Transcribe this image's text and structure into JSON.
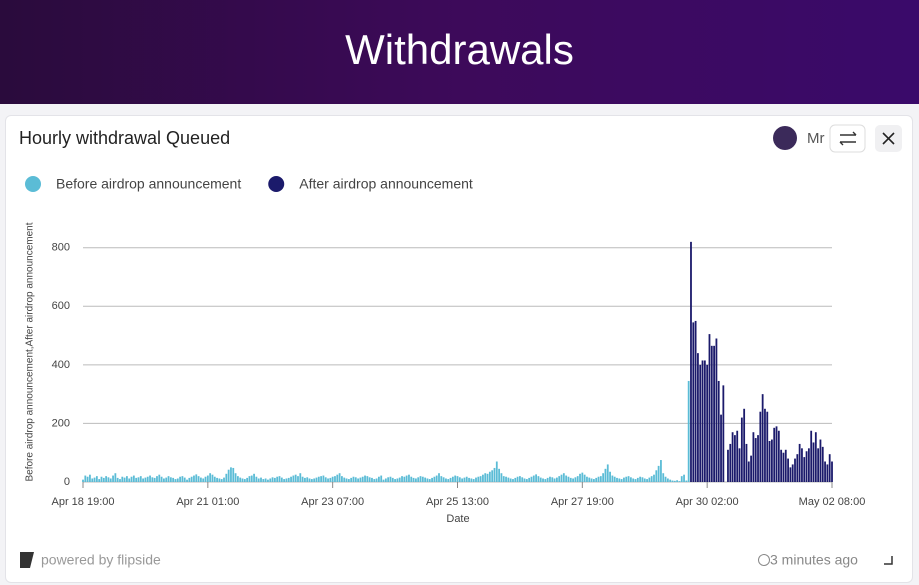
{
  "header": {
    "title": "Withdrawals"
  },
  "card": {
    "user": "Mr",
    "brand": "powered by flipside",
    "updated": "3 minutes ago"
  },
  "chart_data": {
    "type": "bar",
    "title": "Hourly withdrawal Queued",
    "x_label": "Date",
    "y_label": "Before airdrop announcement,After airdrop announcement",
    "legend": "top-left",
    "grid": true,
    "ylim": [
      0,
      840
    ],
    "yticks": [
      0,
      200,
      400,
      600,
      800
    ],
    "categories": [
      "Apr 18 19:00",
      null,
      null,
      null,
      null,
      null,
      null,
      null,
      null,
      null,
      null,
      null,
      null,
      null,
      null,
      null,
      null,
      null,
      null,
      null,
      null,
      null,
      null,
      null,
      null,
      null,
      null,
      null,
      null,
      null,
      null,
      null,
      null,
      null,
      null,
      null,
      null,
      null,
      null,
      null,
      null,
      null,
      null,
      null,
      null,
      null,
      null,
      null,
      null,
      null,
      null,
      null,
      null,
      null,
      "Apr 21 01:00",
      null,
      null,
      null,
      null,
      null,
      null,
      null,
      null,
      null,
      null,
      null,
      null,
      null,
      null,
      null,
      null,
      null,
      null,
      null,
      null,
      null,
      null,
      null,
      null,
      null,
      null,
      null,
      null,
      null,
      null,
      null,
      null,
      null,
      null,
      null,
      null,
      null,
      null,
      null,
      null,
      null,
      null,
      null,
      null,
      null,
      null,
      null,
      null,
      null,
      null,
      null,
      null,
      null,
      "Apr 23 07:00",
      null,
      null,
      null,
      null,
      null,
      null,
      null,
      null,
      null,
      null,
      null,
      null,
      null,
      null,
      null,
      null,
      null,
      null,
      null,
      null,
      null,
      null,
      null,
      null,
      null,
      null,
      null,
      null,
      null,
      null,
      null,
      null,
      null,
      null,
      null,
      null,
      null,
      null,
      null,
      null,
      null,
      null,
      null,
      null,
      null,
      null,
      null,
      null,
      null,
      null,
      null,
      null,
      null,
      "Apr 25 13:00",
      null,
      null,
      null,
      null,
      null,
      null,
      null,
      null,
      null,
      null,
      null,
      null,
      null,
      null,
      null,
      null,
      null,
      null,
      null,
      null,
      null,
      null,
      null,
      null,
      null,
      null,
      null,
      null,
      null,
      null,
      null,
      null,
      null,
      null,
      null,
      null,
      null,
      null,
      null,
      null,
      null,
      null,
      null,
      null,
      null,
      null,
      null,
      null,
      null,
      null,
      null,
      null,
      null,
      "Apr 27 19:00",
      null,
      null,
      null,
      null,
      null,
      null,
      null,
      null,
      null,
      null,
      null,
      null,
      null,
      null,
      null,
      null,
      null,
      null,
      null,
      null,
      null,
      null,
      null,
      null,
      null,
      null,
      null,
      null,
      null,
      null,
      null,
      null,
      null,
      null,
      null,
      null,
      null,
      null,
      null,
      null,
      null,
      null,
      null,
      null,
      null,
      null,
      null,
      null,
      null,
      null,
      null,
      null,
      null,
      "Apr 30 02:00",
      null,
      null,
      null,
      null,
      null,
      null,
      null,
      null,
      null,
      null,
      null,
      null,
      null,
      null,
      null,
      null,
      null,
      null,
      null,
      null,
      null,
      null,
      null,
      null,
      null,
      null,
      null,
      null,
      null,
      null,
      null,
      null,
      null,
      null,
      null,
      null,
      null,
      null,
      null,
      null,
      null,
      null,
      null,
      null,
      null,
      null,
      null,
      null,
      null,
      null,
      null,
      null,
      null,
      "May 02 08:00"
    ],
    "series": [
      {
        "name": "Before airdrop announcement",
        "color": "#5bbcd6",
        "values": [
          8,
          22,
          18,
          25,
          12,
          15,
          20,
          10,
          18,
          14,
          20,
          16,
          12,
          22,
          30,
          14,
          10,
          18,
          15,
          20,
          12,
          18,
          22,
          14,
          16,
          20,
          12,
          15,
          18,
          22,
          16,
          14,
          20,
          25,
          18,
          12,
          15,
          20,
          16,
          14,
          10,
          12,
          18,
          20,
          15,
          8,
          14,
          18,
          22,
          26,
          20,
          15,
          12,
          18,
          22,
          30,
          25,
          18,
          14,
          12,
          10,
          15,
          28,
          42,
          50,
          48,
          30,
          20,
          15,
          12,
          10,
          14,
          20,
          22,
          28,
          18,
          12,
          15,
          10,
          12,
          8,
          12,
          16,
          14,
          18,
          20,
          15,
          10,
          12,
          14,
          18,
          22,
          25,
          20,
          30,
          18,
          14,
          16,
          12,
          10,
          12,
          15,
          18,
          20,
          22,
          16,
          12,
          14,
          18,
          20,
          25,
          30,
          20,
          15,
          12,
          10,
          14,
          18,
          16,
          12,
          15,
          18,
          22,
          20,
          16,
          14,
          10,
          12,
          18,
          22,
          8,
          12,
          16,
          18,
          14,
          10,
          12,
          15,
          20,
          18,
          22,
          25,
          18,
          14,
          12,
          16,
          20,
          18,
          15,
          12,
          10,
          14,
          18,
          22,
          30,
          20,
          16,
          12,
          10,
          14,
          18,
          22,
          20,
          16,
          12,
          15,
          18,
          14,
          12,
          10,
          15,
          18,
          20,
          25,
          30,
          28,
          35,
          40,
          48,
          70,
          45,
          30,
          20,
          18,
          15,
          12,
          10,
          14,
          18,
          20,
          16,
          12,
          10,
          14,
          18,
          22,
          26,
          20,
          15,
          12,
          10,
          14,
          18,
          16,
          12,
          15,
          20,
          25,
          30,
          22,
          18,
          14,
          12,
          16,
          20,
          28,
          32,
          25,
          18,
          15,
          12,
          10,
          14,
          18,
          20,
          30,
          45,
          60,
          35,
          22,
          18,
          14,
          12,
          10,
          15,
          18,
          20,
          16,
          12,
          10,
          14,
          18,
          16,
          12,
          10,
          15,
          20,
          25,
          40,
          55,
          75,
          30,
          18,
          12,
          8,
          5,
          4,
          6,
          3,
          20,
          25,
          5,
          345,
          null,
          null,
          null,
          null,
          null,
          null,
          null,
          null,
          null,
          null,
          null,
          null,
          null,
          null,
          null,
          null,
          null,
          null,
          null,
          null,
          null,
          null,
          null,
          null,
          null,
          null,
          null,
          null,
          null,
          null,
          null,
          null,
          null,
          null,
          null,
          null,
          null,
          null,
          null,
          null,
          null,
          null,
          null,
          null,
          null,
          null,
          null,
          null,
          null,
          null,
          null,
          null,
          null,
          null,
          null,
          null,
          null,
          null,
          null,
          null,
          null,
          null
        ]
      },
      {
        "name": "After airdrop announcement",
        "color": "#1b1a6b",
        "values": [
          null,
          null,
          null,
          null,
          null,
          null,
          null,
          null,
          null,
          null,
          null,
          null,
          null,
          null,
          null,
          null,
          null,
          null,
          null,
          null,
          null,
          null,
          null,
          null,
          null,
          null,
          null,
          null,
          null,
          null,
          null,
          null,
          null,
          null,
          null,
          null,
          null,
          null,
          null,
          null,
          null,
          null,
          null,
          null,
          null,
          null,
          null,
          null,
          null,
          null,
          null,
          null,
          null,
          null,
          null,
          null,
          null,
          null,
          null,
          null,
          null,
          null,
          null,
          null,
          null,
          null,
          null,
          null,
          null,
          null,
          null,
          null,
          null,
          null,
          null,
          null,
          null,
          null,
          null,
          null,
          null,
          null,
          null,
          null,
          null,
          null,
          null,
          null,
          null,
          null,
          null,
          null,
          null,
          null,
          null,
          null,
          null,
          null,
          null,
          null,
          null,
          null,
          null,
          null,
          null,
          null,
          null,
          null,
          null,
          null,
          null,
          null,
          null,
          null,
          null,
          null,
          null,
          null,
          null,
          null,
          null,
          null,
          null,
          null,
          null,
          null,
          null,
          null,
          null,
          null,
          null,
          null,
          null,
          null,
          null,
          null,
          null,
          null,
          null,
          null,
          null,
          null,
          null,
          null,
          null,
          null,
          null,
          null,
          null,
          null,
          null,
          null,
          null,
          null,
          null,
          null,
          null,
          null,
          null,
          null,
          null,
          null,
          null,
          null,
          null,
          null,
          null,
          null,
          null,
          null,
          null,
          null,
          null,
          null,
          null,
          null,
          null,
          null,
          null,
          null,
          null,
          null,
          null,
          null,
          null,
          null,
          null,
          null,
          null,
          null,
          null,
          null,
          null,
          null,
          null,
          null,
          null,
          null,
          null,
          null,
          null,
          null,
          null,
          null,
          null,
          null,
          null,
          null,
          null,
          null,
          null,
          null,
          null,
          null,
          null,
          null,
          null,
          null,
          null,
          null,
          null,
          null,
          null,
          null,
          null,
          null,
          null,
          null,
          null,
          null,
          null,
          null,
          null,
          null,
          null,
          null,
          null,
          null,
          null,
          null,
          null,
          null,
          null,
          null,
          null,
          null,
          null,
          null,
          null,
          null,
          null,
          null,
          null,
          null,
          null,
          null,
          null,
          null,
          null,
          null,
          null,
          null,
          null,
          820,
          545,
          550,
          440,
          400,
          415,
          415,
          400,
          505,
          465,
          465,
          490,
          345,
          230,
          330,
          0,
          110,
          130,
          170,
          160,
          175,
          115,
          220,
          250,
          130,
          70,
          90,
          170,
          150,
          160,
          240,
          300,
          250,
          240,
          140,
          145,
          185,
          190,
          175,
          110,
          100,
          110,
          80,
          50,
          60,
          80,
          95,
          130,
          115,
          85,
          105,
          115,
          175,
          135,
          170,
          115,
          145,
          120,
          70,
          60,
          95,
          70
        ]
      }
    ]
  }
}
